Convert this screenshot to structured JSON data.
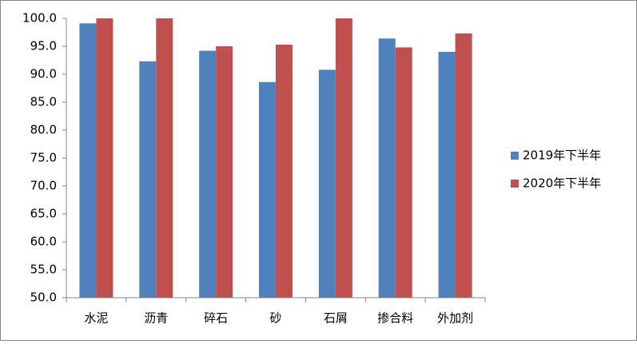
{
  "chart_data": {
    "type": "bar",
    "categories": [
      "水泥",
      "沥青",
      "碎石",
      "砂",
      "石屑",
      "掺合料",
      "外加剂"
    ],
    "series": [
      {
        "name": "2019年下半年",
        "color": "#4f81bd",
        "values": [
          99.1,
          92.3,
          94.2,
          88.6,
          90.8,
          96.4,
          94.0
        ]
      },
      {
        "name": "2020年下半年",
        "color": "#c0504d",
        "values": [
          100,
          100,
          95.0,
          95.3,
          100,
          94.8,
          97.3
        ]
      }
    ],
    "ylim": [
      50,
      100
    ],
    "yticks": [
      {
        "value": 50,
        "label": "50.0"
      },
      {
        "value": 55,
        "label": "55.0"
      },
      {
        "value": 60,
        "label": "60.0"
      },
      {
        "value": 65,
        "label": "65.0"
      },
      {
        "value": 70,
        "label": "70.0"
      },
      {
        "value": 75,
        "label": "75.0"
      },
      {
        "value": 80,
        "label": "80.0"
      },
      {
        "value": 85,
        "label": "85.0"
      },
      {
        "value": 90,
        "label": "90.0"
      },
      {
        "value": 95,
        "label": "95.0"
      },
      {
        "value": 100,
        "label": "100.0"
      }
    ],
    "legend": "right",
    "grid": false
  }
}
